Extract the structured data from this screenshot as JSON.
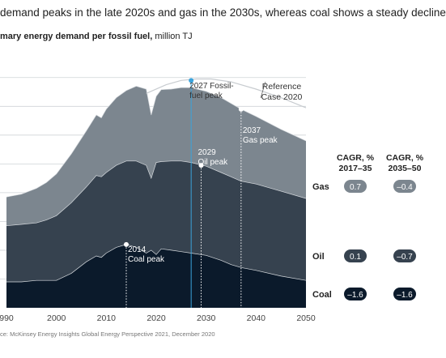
{
  "headline": "demand peaks in the late 2020s and gas in the 2030s, whereas coal shows a steady decline",
  "subtitle_bold": "mary energy demand per fossil fuel,",
  "subtitle_unit": "million TJ",
  "source": "ce: McKinsey Energy Insights Global Energy Perspective 2021, December 2020",
  "chart_data": {
    "type": "area",
    "stacked": true,
    "x_ticks": [
      "990",
      "2000",
      "2010",
      "2020",
      "2030",
      "2040",
      "2050"
    ],
    "x_range": [
      1990,
      2050
    ],
    "x": [
      1990,
      1993,
      1996,
      1998,
      2000,
      2003,
      2006,
      2008,
      2009,
      2010,
      2012,
      2014,
      2016,
      2018,
      2019,
      2020,
      2021,
      2023,
      2025,
      2027,
      2030,
      2033,
      2035,
      2037,
      2040,
      2045,
      2050
    ],
    "series": [
      {
        "name": "Coal",
        "color": "#0b1a2b",
        "values": [
          0.9,
          0.9,
          0.95,
          0.95,
          0.95,
          1.2,
          1.6,
          1.8,
          1.75,
          1.9,
          2.1,
          2.2,
          2.1,
          1.9,
          2.0,
          1.85,
          2.05,
          2.0,
          1.95,
          1.9,
          1.82,
          1.65,
          1.5,
          1.4,
          1.3,
          1.1,
          0.95
        ]
      },
      {
        "name": "Oil",
        "color": "#36424f",
        "values": [
          1.95,
          2.0,
          2.0,
          2.1,
          2.25,
          2.45,
          2.6,
          2.8,
          2.8,
          2.8,
          2.85,
          2.9,
          3.0,
          3.05,
          2.5,
          3.2,
          3.03,
          3.1,
          3.15,
          3.15,
          3.1,
          3.05,
          3.05,
          3.0,
          3.0,
          2.95,
          2.85
        ]
      },
      {
        "name": "Gas",
        "color": "#7c868f",
        "values": [
          1.0,
          1.05,
          1.2,
          1.3,
          1.45,
          1.7,
          1.95,
          2.1,
          2.05,
          2.2,
          2.35,
          2.45,
          2.6,
          2.65,
          2.2,
          2.3,
          2.5,
          2.5,
          2.55,
          2.6,
          2.6,
          2.6,
          2.55,
          2.5,
          2.35,
          2.15,
          2.0
        ]
      }
    ],
    "reference_case": {
      "name": "Reference Case 2020",
      "x": [
        2018,
        2022,
        2025,
        2028,
        2031,
        2035,
        2040,
        2045,
        2050
      ],
      "values": [
        7.45,
        7.75,
        7.9,
        7.95,
        7.95,
        7.85,
        7.6,
        7.3,
        6.95
      ]
    },
    "y_range": [
      0,
      8.5
    ],
    "annotations": [
      {
        "x": 2027,
        "y": 7.9,
        "text_lines": [
          "2027 Fossil-",
          "fuel peak"
        ],
        "marker_color": "#3aa3dc",
        "line_color": "#3aa3dc",
        "line_style": "solid"
      },
      {
        "x": 2029,
        "y": 4.95,
        "text_lines": [
          "2029",
          "Oil peak"
        ],
        "marker_color": "#ffffff",
        "line_color": "#ffffff",
        "line_style": "dotted"
      },
      {
        "x": 2014,
        "y": 2.2,
        "text_lines": [
          "2014",
          "Coal peak"
        ],
        "marker_color": "#ffffff",
        "line_color": "#ffffff",
        "line_style": "dotted"
      },
      {
        "x": 2037,
        "y": 6.9,
        "text_lines": [
          "2037",
          "Gas peak"
        ],
        "marker_color": "#ffffff",
        "line_color": "#ffffff",
        "line_style": "dotted"
      }
    ],
    "reference_label_lines": [
      "Reference",
      "Case 2020"
    ],
    "cagr": {
      "headers": [
        [
          "CAGR, %",
          "2017–35"
        ],
        [
          "CAGR, %",
          "2035–50"
        ]
      ],
      "rows": [
        {
          "label": "Gas",
          "values": [
            "0.7",
            "–0.4"
          ],
          "pill_color": "#7c868f"
        },
        {
          "label": "Oil",
          "values": [
            "0.1",
            "–0.7"
          ],
          "pill_color": "#36424f"
        },
        {
          "label": "Coal",
          "values": [
            "–1.6",
            "–1.6"
          ],
          "pill_color": "#0b1a2b"
        }
      ]
    }
  }
}
